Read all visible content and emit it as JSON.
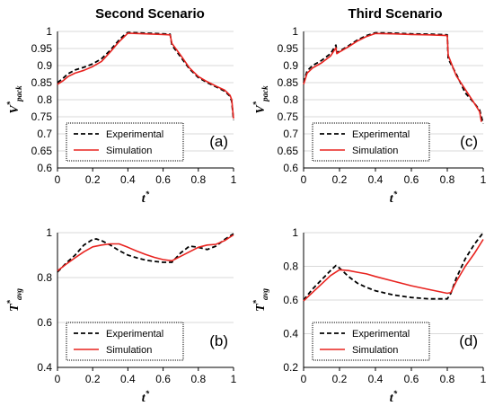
{
  "chart_data": [
    {
      "type": "line",
      "id": "a",
      "title": "Second Scenario",
      "panel_label": "(a)",
      "xlabel_main": "t",
      "xlabel_sup": "*",
      "ylabel_main": "V",
      "ylabel_sup": "*",
      "ylabel_sub": "pack",
      "xlim": [
        0,
        1
      ],
      "ylim": [
        0.6,
        1
      ],
      "xticks": [
        "0",
        "0.2",
        "0.4",
        "0.6",
        "0.8",
        "1"
      ],
      "yticks": [
        "0.6",
        "0.65",
        "0.7",
        "0.75",
        "0.8",
        "0.85",
        "0.9",
        "0.95",
        "1"
      ],
      "legend_position": "bottom-left",
      "series": [
        {
          "name": "Experimental",
          "color": "#000000",
          "dash": "dashed",
          "x": [
            0,
            0.03,
            0.06,
            0.1,
            0.15,
            0.2,
            0.25,
            0.3,
            0.35,
            0.38,
            0.4,
            0.5,
            0.6,
            0.64,
            0.65,
            0.7,
            0.75,
            0.8,
            0.85,
            0.9,
            0.95,
            0.98,
            0.99,
            1.0
          ],
          "y": [
            0.85,
            0.862,
            0.876,
            0.887,
            0.895,
            0.905,
            0.92,
            0.945,
            0.975,
            0.99,
            0.997,
            0.995,
            0.993,
            0.992,
            0.96,
            0.925,
            0.89,
            0.865,
            0.85,
            0.838,
            0.825,
            0.81,
            0.795,
            0.74
          ]
        },
        {
          "name": "Simulation",
          "color": "#e8231f",
          "dash": "solid",
          "x": [
            0,
            0.03,
            0.06,
            0.1,
            0.15,
            0.2,
            0.25,
            0.3,
            0.35,
            0.38,
            0.4,
            0.5,
            0.6,
            0.64,
            0.65,
            0.7,
            0.75,
            0.8,
            0.85,
            0.9,
            0.95,
            0.98,
            0.99,
            1.0
          ],
          "y": [
            0.845,
            0.855,
            0.868,
            0.878,
            0.886,
            0.897,
            0.912,
            0.94,
            0.97,
            0.985,
            0.995,
            0.993,
            0.991,
            0.99,
            0.965,
            0.93,
            0.893,
            0.868,
            0.853,
            0.84,
            0.828,
            0.813,
            0.8,
            0.745
          ]
        }
      ]
    },
    {
      "type": "line",
      "id": "c",
      "title": "Third Scenario",
      "panel_label": "(c)",
      "xlabel_main": "t",
      "xlabel_sup": "*",
      "ylabel_main": "V",
      "ylabel_sup": "*",
      "ylabel_sub": "pack",
      "xlim": [
        0,
        1
      ],
      "ylim": [
        0.6,
        1
      ],
      "xticks": [
        "0",
        "0.2",
        "0.4",
        "0.6",
        "0.8",
        "1"
      ],
      "yticks": [
        "0.6",
        "0.65",
        "0.7",
        "0.75",
        "0.8",
        "0.85",
        "0.9",
        "0.95",
        "1"
      ],
      "legend_position": "bottom-left",
      "series": [
        {
          "name": "Experimental",
          "color": "#000000",
          "dash": "dashed",
          "x": [
            0,
            0.02,
            0.05,
            0.1,
            0.15,
            0.18,
            0.185,
            0.2,
            0.25,
            0.3,
            0.35,
            0.4,
            0.5,
            0.6,
            0.7,
            0.8,
            0.805,
            0.85,
            0.9,
            0.95,
            0.98,
            1.0
          ],
          "y": [
            0.85,
            0.885,
            0.9,
            0.915,
            0.935,
            0.96,
            0.938,
            0.942,
            0.958,
            0.975,
            0.988,
            0.996,
            0.995,
            0.993,
            0.992,
            0.99,
            0.92,
            0.875,
            0.82,
            0.79,
            0.77,
            0.73
          ]
        },
        {
          "name": "Simulation",
          "color": "#e8231f",
          "dash": "solid",
          "x": [
            0,
            0.02,
            0.05,
            0.1,
            0.15,
            0.18,
            0.185,
            0.2,
            0.25,
            0.3,
            0.35,
            0.4,
            0.5,
            0.6,
            0.7,
            0.8,
            0.805,
            0.85,
            0.9,
            0.95,
            0.98,
            0.99
          ],
          "y": [
            0.845,
            0.878,
            0.893,
            0.908,
            0.928,
            0.952,
            0.935,
            0.94,
            0.955,
            0.972,
            0.985,
            0.994,
            0.993,
            0.991,
            0.99,
            0.988,
            0.93,
            0.87,
            0.83,
            0.79,
            0.765,
            0.735
          ]
        }
      ]
    },
    {
      "type": "line",
      "id": "b",
      "title": "",
      "panel_label": "(b)",
      "xlabel_main": "t",
      "xlabel_sup": "*",
      "ylabel_main": "T",
      "ylabel_sup": "*",
      "ylabel_sub": "avg",
      "xlim": [
        0,
        1
      ],
      "ylim": [
        0.4,
        1
      ],
      "xticks": [
        "0",
        "0.2",
        "0.4",
        "0.6",
        "0.8",
        "1"
      ],
      "yticks": [
        "0.4",
        "0.6",
        "0.8",
        "1"
      ],
      "legend_position": "bottom-left",
      "series": [
        {
          "name": "Experimental",
          "color": "#000000",
          "dash": "dashed",
          "x": [
            0,
            0.05,
            0.1,
            0.15,
            0.2,
            0.22,
            0.25,
            0.3,
            0.35,
            0.4,
            0.45,
            0.5,
            0.55,
            0.6,
            0.65,
            0.7,
            0.75,
            0.8,
            0.85,
            0.9,
            0.95,
            1.0
          ],
          "y": [
            0.825,
            0.865,
            0.9,
            0.945,
            0.97,
            0.972,
            0.965,
            0.945,
            0.92,
            0.9,
            0.888,
            0.878,
            0.872,
            0.868,
            0.868,
            0.91,
            0.94,
            0.935,
            0.925,
            0.94,
            0.97,
            0.995
          ]
        },
        {
          "name": "Simulation",
          "color": "#e8231f",
          "dash": "solid",
          "x": [
            0,
            0.05,
            0.1,
            0.15,
            0.2,
            0.25,
            0.3,
            0.35,
            0.4,
            0.45,
            0.5,
            0.55,
            0.6,
            0.65,
            0.7,
            0.75,
            0.8,
            0.85,
            0.9,
            0.95,
            1.0
          ],
          "y": [
            0.83,
            0.86,
            0.888,
            0.915,
            0.937,
            0.945,
            0.95,
            0.95,
            0.935,
            0.918,
            0.903,
            0.89,
            0.88,
            0.875,
            0.895,
            0.915,
            0.935,
            0.945,
            0.948,
            0.965,
            0.99
          ]
        }
      ]
    },
    {
      "type": "line",
      "id": "d",
      "title": "",
      "panel_label": "(d)",
      "xlabel_main": "t",
      "xlabel_sup": "*",
      "ylabel_main": "T",
      "ylabel_sup": "*",
      "ylabel_sub": "avg",
      "xlim": [
        0,
        1
      ],
      "ylim": [
        0.2,
        1
      ],
      "xticks": [
        "0",
        "0.2",
        "0.4",
        "0.6",
        "0.8",
        "1"
      ],
      "yticks": [
        "0.2",
        "0.4",
        "0.6",
        "0.8",
        "1"
      ],
      "legend_position": "bottom-left",
      "series": [
        {
          "name": "Experimental",
          "color": "#000000",
          "dash": "dashed",
          "x": [
            0,
            0.05,
            0.1,
            0.15,
            0.18,
            0.2,
            0.25,
            0.3,
            0.35,
            0.4,
            0.5,
            0.6,
            0.7,
            0.8,
            0.82,
            0.85,
            0.9,
            0.95,
            1.0
          ],
          "y": [
            0.6,
            0.665,
            0.72,
            0.775,
            0.805,
            0.79,
            0.74,
            0.7,
            0.675,
            0.655,
            0.63,
            0.615,
            0.607,
            0.607,
            0.64,
            0.73,
            0.845,
            0.93,
            1.0
          ]
        },
        {
          "name": "Simulation",
          "color": "#e8231f",
          "dash": "solid",
          "x": [
            0,
            0.05,
            0.1,
            0.15,
            0.2,
            0.25,
            0.3,
            0.35,
            0.4,
            0.5,
            0.6,
            0.7,
            0.8,
            0.82,
            0.85,
            0.9,
            0.95,
            1.0
          ],
          "y": [
            0.595,
            0.645,
            0.695,
            0.745,
            0.78,
            0.775,
            0.765,
            0.755,
            0.74,
            0.712,
            0.685,
            0.662,
            0.64,
            0.645,
            0.71,
            0.8,
            0.875,
            0.96
          ]
        }
      ]
    }
  ]
}
